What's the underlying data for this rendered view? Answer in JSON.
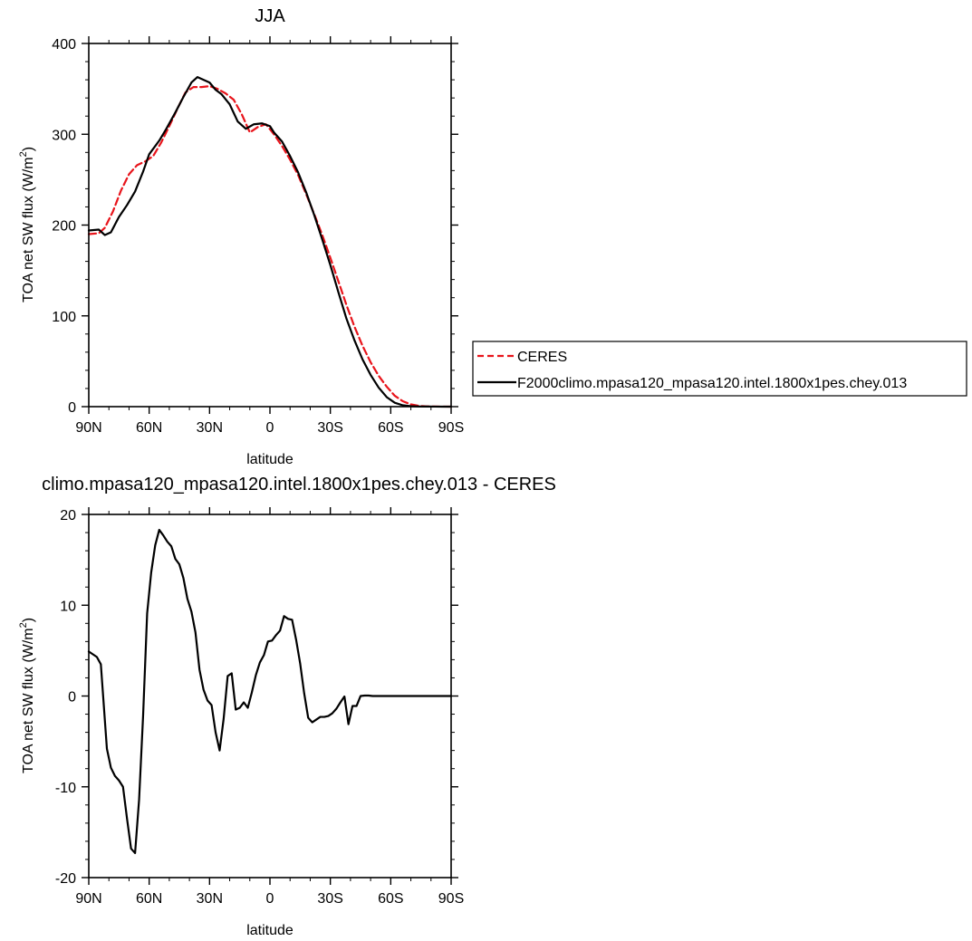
{
  "chart_data": [
    {
      "type": "line",
      "title": "JJA",
      "xlabel": "latitude",
      "ylabel": "TOA net SW flux (W/m",
      "ylabel_sup": "2",
      "ylabel_close": ")",
      "xlim": [
        90,
        -90
      ],
      "ylim": [
        0,
        400
      ],
      "x_ticks": [
        {
          "v": 90,
          "label": "90N"
        },
        {
          "v": 60,
          "label": "60N"
        },
        {
          "v": 30,
          "label": "30N"
        },
        {
          "v": 0,
          "label": "0"
        },
        {
          "v": -30,
          "label": "30S"
        },
        {
          "v": -60,
          "label": "60S"
        },
        {
          "v": -90,
          "label": "90S"
        }
      ],
      "y_ticks": [
        0,
        100,
        200,
        300,
        400
      ],
      "legend_placement": "right",
      "series": [
        {
          "name": "CERES",
          "color": "#e8141b",
          "dash": "dashed",
          "x": [
            90,
            85,
            82,
            78,
            74,
            70,
            66,
            62,
            58,
            54,
            50,
            46,
            42,
            38,
            34,
            30,
            26,
            22,
            18,
            14,
            10,
            6,
            2,
            -2,
            -6,
            -10,
            -14,
            -18,
            -22,
            -26,
            -30,
            -34,
            -38,
            -42,
            -46,
            -50,
            -54,
            -58,
            -62,
            -66,
            -70,
            -74,
            -78,
            -82,
            -86,
            -90
          ],
          "y": [
            190,
            191,
            197,
            215,
            238,
            256,
            266,
            270,
            276,
            291,
            309,
            328,
            346,
            352,
            352,
            353,
            350,
            345,
            338,
            322,
            302,
            308,
            311,
            300,
            287,
            272,
            255,
            234,
            212,
            189,
            164,
            138,
            112,
            88,
            67,
            49,
            34,
            22,
            12,
            6,
            2.5,
            0.8,
            0.3,
            0.1,
            0.05,
            0
          ],
          "marker": "none"
        },
        {
          "name": "F2000climo.mpasa120_mpasa120.intel.1800x1pes.chey.013",
          "color": "#000000",
          "dash": "solid",
          "x": [
            90,
            85,
            82,
            79,
            75,
            71,
            67,
            63,
            60,
            55,
            52,
            47,
            43,
            39,
            36,
            33,
            30,
            27,
            24,
            20,
            16,
            12,
            8,
            4,
            0,
            -2,
            -6,
            -10,
            -14,
            -18,
            -22,
            -26,
            -30,
            -34,
            -38,
            -42,
            -46,
            -50,
            -54,
            -58,
            -62,
            -66,
            -70,
            -74,
            -78,
            -82,
            -86,
            -90
          ],
          "y": [
            194,
            195,
            189,
            192,
            209,
            222,
            237,
            259,
            278,
            293,
            304,
            324,
            341,
            357,
            363,
            360,
            357,
            349,
            344,
            333,
            314,
            306,
            311,
            312,
            309,
            302,
            292,
            276,
            258,
            236,
            211,
            184,
            156,
            126,
            97,
            73,
            52,
            35,
            21,
            10.5,
            4.3,
            1.5,
            0.5,
            0.2,
            0.1,
            0.05,
            0.01,
            0
          ],
          "marker": "none"
        }
      ]
    },
    {
      "type": "line",
      "title": "climo.mpasa120_mpasa120.intel.1800x1pes.chey.013 - CERES",
      "xlabel": "latitude",
      "ylabel": "TOA net SW flux (W/m",
      "ylabel_sup": "2",
      "ylabel_close": ")",
      "xlim": [
        90,
        -90
      ],
      "ylim": [
        -20,
        20
      ],
      "x_ticks": [
        {
          "v": 90,
          "label": "90N"
        },
        {
          "v": 60,
          "label": "60N"
        },
        {
          "v": 30,
          "label": "30N"
        },
        {
          "v": 0,
          "label": "0"
        },
        {
          "v": -30,
          "label": "30S"
        },
        {
          "v": -60,
          "label": "60S"
        },
        {
          "v": -90,
          "label": "90S"
        }
      ],
      "y_ticks": [
        -20,
        -10,
        0,
        10,
        20
      ],
      "series": [
        {
          "color": "#000000",
          "dash": "solid",
          "x": [
            90,
            86,
            84,
            81,
            79,
            77,
            75,
            73,
            71,
            69,
            67,
            65,
            63,
            61,
            59,
            57,
            55,
            53,
            51,
            49,
            47,
            45,
            43,
            41,
            39,
            37,
            35,
            33,
            31,
            29,
            27,
            25,
            23,
            21,
            19,
            17,
            15,
            13,
            11,
            9,
            7,
            5,
            3,
            1,
            -1,
            -3,
            -5,
            -7,
            -9,
            -11,
            -13,
            -15,
            -17,
            -19,
            -21,
            -23,
            -25,
            -27,
            -29,
            -31,
            -33,
            -35,
            -37,
            -39,
            -41,
            -43,
            -45,
            -47,
            -49,
            -51,
            -53,
            -55,
            -57,
            -59,
            -61,
            -63,
            -65,
            -67,
            -69,
            -71,
            -73,
            -75,
            -77,
            -79,
            -81,
            -83,
            -85,
            -87,
            -90
          ],
          "y": [
            4.9,
            4.3,
            3.5,
            -5.8,
            -7.9,
            -8.8,
            -9.3,
            -10.0,
            -13.5,
            -16.8,
            -17.3,
            -11.4,
            -2.1,
            9.1,
            13.6,
            16.6,
            18.3,
            17.7,
            17.0,
            16.5,
            15.1,
            14.5,
            13.0,
            10.7,
            9.3,
            7.0,
            2.9,
            0.7,
            -0.5,
            -1.0,
            -4.0,
            -6.0,
            -2.5,
            2.2,
            2.5,
            -1.5,
            -1.3,
            -0.7,
            -1.3,
            0.4,
            2.3,
            3.7,
            4.5,
            6.0,
            6.1,
            6.7,
            7.2,
            8.8,
            8.5,
            8.4,
            6.2,
            3.6,
            0.3,
            -2.4,
            -2.9,
            -2.6,
            -2.3,
            -2.3,
            -2.2,
            -1.9,
            -1.4,
            -0.7,
            -0.05,
            -3.1,
            -1.1,
            -1.1,
            0.0,
            0.05,
            0.05,
            0.0,
            0.0,
            0.0,
            0.0,
            0.0,
            0.0,
            0.0,
            0.0,
            0.0,
            0.0,
            0.0,
            0.0,
            0.0,
            0.0,
            0.0,
            0.0,
            0.0,
            0.0,
            0.0,
            0.0
          ],
          "marker": "none"
        }
      ]
    }
  ]
}
